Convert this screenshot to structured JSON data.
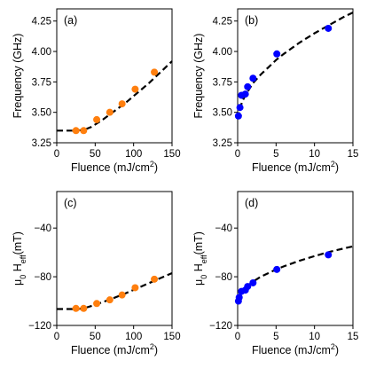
{
  "figure": {
    "panels": [
      "a",
      "b",
      "c",
      "d"
    ]
  },
  "chart_data": [
    {
      "id": "a",
      "type": "scatter",
      "panel_label": "(a)",
      "xlabel": "Fluence (mJ/cm",
      "xlabel_sup": "2",
      "xlabel_tail": ")",
      "ylabel": "Frequency (GHz)",
      "xlim": [
        0,
        150
      ],
      "ylim": [
        3.25,
        4.35
      ],
      "xticks": [
        0,
        50,
        100,
        150
      ],
      "yticks": [
        3.25,
        3.5,
        3.75,
        4.0,
        4.25
      ],
      "xtick_labels": [
        "0",
        "50",
        "100",
        "150"
      ],
      "ytick_labels": [
        "3.25",
        "3.50",
        "3.75",
        "4.00",
        "4.25"
      ],
      "color": "#ff7f0e",
      "points": [
        {
          "x": 25,
          "y": 3.35,
          "xerr": 5
        },
        {
          "x": 35,
          "y": 3.35,
          "xerr": 0
        },
        {
          "x": 52,
          "y": 3.44,
          "xerr": 0
        },
        {
          "x": 69,
          "y": 3.5,
          "xerr": 0
        },
        {
          "x": 85,
          "y": 3.57,
          "xerr": 0
        },
        {
          "x": 102,
          "y": 3.69,
          "xerr": 0
        },
        {
          "x": 127,
          "y": 3.83,
          "xerr": 0
        }
      ],
      "fit": {
        "x": [
          0,
          25,
          35,
          45,
          60,
          75,
          90,
          105,
          120,
          135,
          150
        ],
        "y": [
          3.35,
          3.35,
          3.355,
          3.38,
          3.44,
          3.51,
          3.58,
          3.66,
          3.74,
          3.83,
          3.92
        ]
      }
    },
    {
      "id": "b",
      "type": "scatter",
      "panel_label": "(b)",
      "xlabel": "Fluence (mJ/cm",
      "xlabel_sup": "2",
      "xlabel_tail": ")",
      "ylabel": "Frequency (GHz)",
      "xlim": [
        0,
        15
      ],
      "ylim": [
        3.25,
        4.35
      ],
      "xticks": [
        0,
        5,
        10,
        15
      ],
      "yticks": [
        3.25,
        3.5,
        3.75,
        4.0,
        4.25
      ],
      "xtick_labels": [
        "0",
        "5",
        "10",
        "15"
      ],
      "ytick_labels": [
        "3.25",
        "3.50",
        "3.75",
        "4.00",
        "4.25"
      ],
      "color": "#0000ff",
      "points": [
        {
          "x": 0.1,
          "y": 3.47,
          "xerr": 0
        },
        {
          "x": 0.3,
          "y": 3.54,
          "xerr": 0
        },
        {
          "x": 0.5,
          "y": 3.64,
          "xerr": 0
        },
        {
          "x": 1.0,
          "y": 3.65,
          "xerr": 0
        },
        {
          "x": 1.3,
          "y": 3.71,
          "xerr": 0
        },
        {
          "x": 2.0,
          "y": 3.78,
          "xerr": 0
        },
        {
          "x": 5.1,
          "y": 3.98,
          "xerr": 0
        },
        {
          "x": 11.8,
          "y": 4.19,
          "xerr": 0.15
        }
      ],
      "fit": {
        "x": [
          0.05,
          0.3,
          0.6,
          1,
          1.5,
          2,
          3,
          4,
          5,
          6,
          8,
          10,
          12,
          14,
          15
        ],
        "y": [
          3.45,
          3.53,
          3.59,
          3.64,
          3.69,
          3.74,
          3.81,
          3.87,
          3.93,
          3.98,
          4.07,
          4.15,
          4.22,
          4.29,
          4.32
        ]
      }
    },
    {
      "id": "c",
      "type": "scatter",
      "panel_label": "(c)",
      "xlabel": "Fluence (mJ/cm",
      "xlabel_sup": "2",
      "xlabel_tail": ")",
      "ylabel": "μ",
      "ylabel_sub": "0",
      "ylabel_mid": " H",
      "ylabel_sub2": "eff",
      "ylabel_tail": "(mT)",
      "xlim": [
        0,
        150
      ],
      "ylim": [
        -120,
        -10
      ],
      "xticks": [
        0,
        50,
        100,
        150
      ],
      "yticks": [
        -120,
        -80,
        -40
      ],
      "xtick_labels": [
        "0",
        "50",
        "100",
        "150"
      ],
      "ytick_labels": [
        "−120",
        "−80",
        "−40"
      ],
      "color": "#ff7f0e",
      "points": [
        {
          "x": 25,
          "y": -106,
          "xerr": 5
        },
        {
          "x": 35,
          "y": -106,
          "xerr": 0
        },
        {
          "x": 52,
          "y": -102,
          "xerr": 0
        },
        {
          "x": 69,
          "y": -99,
          "xerr": 0
        },
        {
          "x": 85,
          "y": -95,
          "xerr": 0
        },
        {
          "x": 102,
          "y": -89,
          "xerr": 0
        },
        {
          "x": 127,
          "y": -82,
          "xerr": 0
        }
      ],
      "fit": {
        "x": [
          0,
          25,
          35,
          50,
          70,
          90,
          110,
          130,
          150
        ],
        "y": [
          -106.5,
          -106.5,
          -106,
          -103,
          -98.5,
          -93.5,
          -88,
          -82.5,
          -77
        ]
      }
    },
    {
      "id": "d",
      "type": "scatter",
      "panel_label": "(d)",
      "xlabel": "Fluence (mJ/cm",
      "xlabel_sup": "2",
      "xlabel_tail": ")",
      "ylabel": "μ",
      "ylabel_sub": "0",
      "ylabel_mid": " H",
      "ylabel_sub2": "eff",
      "ylabel_tail": "(mT)",
      "xlim": [
        0,
        15
      ],
      "ylim": [
        -120,
        -10
      ],
      "xticks": [
        0,
        5,
        10,
        15
      ],
      "yticks": [
        -120,
        -80,
        -40
      ],
      "xtick_labels": [
        "0",
        "5",
        "10",
        "15"
      ],
      "ytick_labels": [
        "−120",
        "−80",
        "−40"
      ],
      "color": "#0000ff",
      "points": [
        {
          "x": 0.1,
          "y": -100,
          "xerr": 0
        },
        {
          "x": 0.2,
          "y": -97,
          "xerr": 0
        },
        {
          "x": 0.5,
          "y": -92,
          "xerr": 0
        },
        {
          "x": 1.0,
          "y": -91,
          "xerr": 0
        },
        {
          "x": 1.3,
          "y": -88,
          "xerr": 0
        },
        {
          "x": 2.0,
          "y": -85,
          "xerr": 0
        },
        {
          "x": 5.1,
          "y": -74,
          "xerr": 0
        },
        {
          "x": 11.8,
          "y": -62,
          "xerr": 0.2
        }
      ],
      "fit": {
        "x": [
          0.05,
          0.3,
          0.6,
          1,
          1.5,
          2,
          3,
          4,
          5,
          6,
          8,
          10,
          12,
          14,
          15
        ],
        "y": [
          -102,
          -96,
          -92.5,
          -89.5,
          -86.5,
          -84,
          -80,
          -77,
          -74,
          -71.5,
          -67,
          -63,
          -59.5,
          -56.5,
          -55
        ]
      }
    }
  ]
}
